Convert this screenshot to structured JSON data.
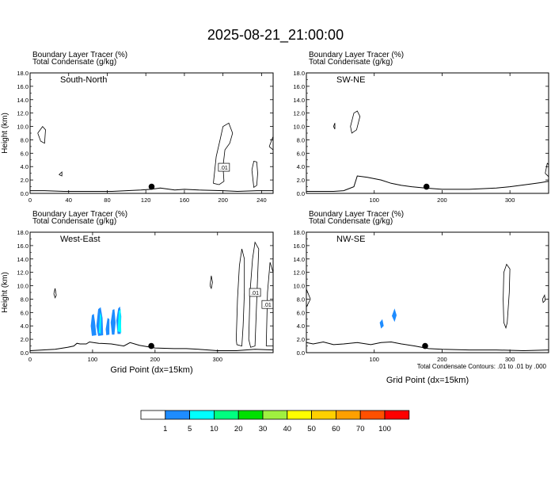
{
  "figure": {
    "title": "2025-08-21_21:00:00",
    "footer_note": "Total Condensate Contours: .01 to .01 by .000"
  },
  "colorbar": {
    "colors": [
      "#ffffff",
      "#1e8cff",
      "#00ffff",
      "#00ff80",
      "#00e000",
      "#a0f040",
      "#ffff00",
      "#ffd000",
      "#ffa000",
      "#ff5000",
      "#ff0000"
    ],
    "labels": [
      "1",
      "5",
      "10",
      "20",
      "30",
      "40",
      "50",
      "60",
      "70",
      "100"
    ]
  },
  "chart_data": [
    {
      "type": "contour",
      "header_line1": "Boundary Layer Tracer   (%)",
      "header_line2": "Total Condensate   (g/kg)",
      "panel_label": "South-North",
      "ylabel": "Height (km)",
      "xlabel": "",
      "xlim": [
        0,
        252
      ],
      "ylim": [
        0,
        18
      ],
      "xticks": [
        0,
        40,
        80,
        120,
        160,
        200,
        240
      ],
      "yticks": [
        "0.0",
        "2.0",
        "4.0",
        "6.0",
        "8.0",
        "10.0",
        "12.0",
        "14.0",
        "16.0",
        "18.0"
      ],
      "terrain": [
        [
          0,
          0.4
        ],
        [
          15,
          0.4
        ],
        [
          35,
          0.3
        ],
        [
          60,
          0.3
        ],
        [
          85,
          0.3
        ],
        [
          100,
          0.4
        ],
        [
          115,
          0.5
        ],
        [
          125,
          0.6
        ],
        [
          135,
          0.8
        ],
        [
          150,
          0.5
        ],
        [
          160,
          0.6
        ],
        [
          175,
          0.5
        ],
        [
          200,
          0.4
        ],
        [
          215,
          0.3
        ],
        [
          235,
          0.4
        ],
        [
          252,
          0.4
        ]
      ],
      "condensate_contour_label": ".01",
      "contours": [
        [
          [
            8,
            9.0
          ],
          [
            13,
            10.0
          ],
          [
            16,
            9.5
          ],
          [
            15,
            7.5
          ],
          [
            11,
            7.8
          ],
          [
            8,
            9.0
          ]
        ],
        [
          [
            30,
            2.8
          ],
          [
            33,
            3.2
          ],
          [
            33,
            2.6
          ],
          [
            30,
            2.8
          ]
        ],
        [
          [
            190,
            1.5
          ],
          [
            193,
            5.5
          ],
          [
            197,
            8.0
          ],
          [
            200,
            10.0
          ],
          [
            206,
            10.5
          ],
          [
            210,
            9.0
          ],
          [
            207,
            7.5
          ],
          [
            202,
            6.5
          ],
          [
            200,
            4.0
          ],
          [
            201,
            1.8
          ],
          [
            196,
            1.3
          ],
          [
            190,
            1.5
          ]
        ],
        [
          [
            230,
            3.5
          ],
          [
            232,
            4.8
          ],
          [
            235,
            4.7
          ],
          [
            236,
            3.0
          ],
          [
            235,
            1.2
          ],
          [
            232,
            0.9
          ],
          [
            230,
            3.5
          ]
        ],
        [
          [
            248,
            7.0
          ],
          [
            252,
            8.5
          ],
          [
            252,
            6.5
          ],
          [
            248,
            7.0
          ]
        ]
      ],
      "marker": {
        "x": 126,
        "y": 1.0
      },
      "boxed_label": {
        "x": 201,
        "y": 3.9,
        "text": ".01"
      }
    },
    {
      "type": "contour",
      "header_line1": "Boundary Layer Tracer   (%)",
      "header_line2": "Total Condensate   (g/kg)",
      "panel_label": "SW-NE",
      "ylabel": "",
      "xlabel": "",
      "xlim": [
        0,
        357
      ],
      "ylim": [
        0,
        18
      ],
      "xticks": [
        100,
        200,
        300
      ],
      "yticks": [
        "0.0",
        "2.0",
        "4.0",
        "6.0",
        "8.0",
        "10.0",
        "12.0",
        "14.0",
        "16.0",
        "18.0"
      ],
      "terrain": [
        [
          0,
          0.3
        ],
        [
          40,
          0.3
        ],
        [
          55,
          0.4
        ],
        [
          70,
          1.0
        ],
        [
          75,
          2.6
        ],
        [
          90,
          2.4
        ],
        [
          110,
          2.0
        ],
        [
          125,
          1.5
        ],
        [
          140,
          1.2
        ],
        [
          155,
          1.0
        ],
        [
          175,
          0.8
        ],
        [
          200,
          0.6
        ],
        [
          240,
          0.6
        ],
        [
          280,
          0.8
        ],
        [
          300,
          1.0
        ],
        [
          330,
          1.4
        ],
        [
          345,
          1.6
        ],
        [
          357,
          1.8
        ]
      ],
      "contours": [
        [
          [
            65,
            10.0
          ],
          [
            70,
            12.0
          ],
          [
            75,
            12.3
          ],
          [
            79,
            11.5
          ],
          [
            74,
            9.5
          ],
          [
            67,
            9.0
          ],
          [
            65,
            10.0
          ]
        ],
        [
          [
            40,
            10.0
          ],
          [
            42,
            10.5
          ],
          [
            42,
            9.6
          ],
          [
            40,
            10.0
          ]
        ],
        [
          [
            352,
            3.0
          ],
          [
            355,
            4.5
          ],
          [
            357,
            4.3
          ],
          [
            357,
            2.5
          ],
          [
            352,
            3.0
          ]
        ]
      ],
      "marker": {
        "x": 177,
        "y": 1.0
      }
    },
    {
      "type": "contour",
      "header_line1": "Boundary Layer Tracer   (%)",
      "header_line2": "Total Condensate   (g/kg)",
      "panel_label": "West-East",
      "ylabel": "Height (km)",
      "xlabel": "Grid Point (dx=15km)",
      "xlim": [
        0,
        389
      ],
      "ylim": [
        0,
        18
      ],
      "xticks": [
        0,
        100,
        200,
        300
      ],
      "yticks": [
        "0.0",
        "2.0",
        "4.0",
        "6.0",
        "8.0",
        "10.0",
        "12.0",
        "14.0",
        "16.0",
        "18.0"
      ],
      "terrain": [
        [
          0,
          0.3
        ],
        [
          40,
          0.5
        ],
        [
          60,
          0.8
        ],
        [
          70,
          1.0
        ],
        [
          75,
          1.4
        ],
        [
          80,
          1.3
        ],
        [
          90,
          1.3
        ],
        [
          95,
          1.6
        ],
        [
          110,
          1.4
        ],
        [
          130,
          1.3
        ],
        [
          150,
          1.0
        ],
        [
          160,
          1.5
        ],
        [
          175,
          1.1
        ],
        [
          200,
          0.7
        ],
        [
          230,
          0.6
        ],
        [
          250,
          0.6
        ],
        [
          270,
          0.5
        ],
        [
          300,
          0.3
        ],
        [
          330,
          0.3
        ],
        [
          360,
          0.5
        ],
        [
          389,
          0.4
        ]
      ],
      "fills": [
        [
          [
            97,
            4.0
          ],
          [
            99,
            5.6
          ],
          [
            102,
            5.8
          ],
          [
            104,
            4.5
          ],
          [
            106,
            2.6
          ],
          [
            99,
            2.5
          ],
          [
            97,
            4.0
          ]
        ],
        [
          [
            106,
            4.0
          ],
          [
            109,
            6.5
          ],
          [
            113,
            6.8
          ],
          [
            116,
            5.2
          ],
          [
            117,
            2.6
          ],
          [
            109,
            2.5
          ],
          [
            106,
            4.0
          ]
        ],
        [
          [
            121,
            3.5
          ],
          [
            124,
            5.2
          ],
          [
            127,
            5.0
          ],
          [
            127,
            2.7
          ],
          [
            122,
            2.6
          ],
          [
            121,
            3.5
          ]
        ],
        [
          [
            129,
            4.5
          ],
          [
            132,
            6.4
          ],
          [
            135,
            6.5
          ],
          [
            137,
            4.5
          ],
          [
            135,
            2.7
          ],
          [
            131,
            2.7
          ],
          [
            129,
            4.5
          ]
        ],
        [
          [
            138,
            4.8
          ],
          [
            141,
            6.6
          ],
          [
            144,
            6.9
          ],
          [
            146,
            5.4
          ],
          [
            145,
            2.8
          ],
          [
            140,
            2.8
          ],
          [
            138,
            4.8
          ]
        ]
      ],
      "cyan_fills": [
        [
          [
            110,
            3.0
          ],
          [
            112,
            6.0
          ],
          [
            114,
            5.5
          ],
          [
            113,
            2.8
          ],
          [
            110,
            3.0
          ]
        ],
        [
          [
            140,
            3.2
          ],
          [
            142,
            6.2
          ],
          [
            145,
            6.5
          ],
          [
            146,
            3.0
          ],
          [
            140,
            3.2
          ]
        ]
      ],
      "contours": [
        [
          [
            38,
            8.8
          ],
          [
            40,
            9.6
          ],
          [
            42,
            8.6
          ],
          [
            40,
            8.2
          ],
          [
            38,
            8.8
          ]
        ],
        [
          [
            330,
            2.0
          ],
          [
            332,
            8.0
          ],
          [
            335,
            13.0
          ],
          [
            339,
            15.5
          ],
          [
            343,
            14.0
          ],
          [
            343,
            9.0
          ],
          [
            341,
            4.0
          ],
          [
            339,
            1.0
          ],
          [
            331,
            1.2
          ],
          [
            330,
            2.0
          ]
        ],
        [
          [
            350,
            2.0
          ],
          [
            352,
            9.0
          ],
          [
            356,
            14.0
          ],
          [
            360,
            16.5
          ],
          [
            366,
            15.5
          ],
          [
            364,
            11.0
          ],
          [
            362,
            6.0
          ],
          [
            360,
            1.0
          ],
          [
            353,
            0.8
          ],
          [
            350,
            2.0
          ]
        ],
        [
          [
            378,
            1.0
          ],
          [
            380,
            9.0
          ],
          [
            384,
            13.5
          ],
          [
            389,
            12.0
          ],
          [
            389,
            1.0
          ],
          [
            378,
            1.0
          ]
        ],
        [
          [
            288,
            10.0
          ],
          [
            290,
            11.5
          ],
          [
            292,
            10.5
          ],
          [
            290,
            9.6
          ],
          [
            288,
            10.0
          ]
        ]
      ],
      "marker": {
        "x": 194,
        "y": 1.0
      },
      "boxed_label": {
        "x": 360,
        "y": 9.0,
        "text": ".01"
      },
      "boxed_label_2": {
        "x": 380,
        "y": 7.2,
        "text": ".01"
      }
    },
    {
      "type": "contour",
      "header_line1": "Boundary Layer Tracer   (%)",
      "header_line2": "Total Condensate   (g/kg)",
      "panel_label": "NW-SE",
      "ylabel": "",
      "xlabel": "Grid Point (dx=15km)",
      "xlim": [
        0,
        357
      ],
      "ylim": [
        0,
        18
      ],
      "xticks": [
        100,
        200,
        300
      ],
      "yticks": [
        "0.0",
        "2.0",
        "4.0",
        "6.0",
        "8.0",
        "10.0",
        "12.0",
        "14.0",
        "16.0",
        "18.0"
      ],
      "terrain": [
        [
          0,
          1.5
        ],
        [
          10,
          1.3
        ],
        [
          25,
          1.6
        ],
        [
          40,
          1.2
        ],
        [
          55,
          1.3
        ],
        [
          75,
          1.5
        ],
        [
          95,
          1.2
        ],
        [
          110,
          1.5
        ],
        [
          125,
          1.6
        ],
        [
          140,
          1.3
        ],
        [
          160,
          1.0
        ],
        [
          180,
          0.6
        ],
        [
          200,
          0.5
        ],
        [
          240,
          0.4
        ],
        [
          280,
          0.4
        ],
        [
          320,
          0.3
        ],
        [
          357,
          0.4
        ]
      ],
      "fills": [
        [
          [
            108,
            4.5
          ],
          [
            112,
            5.0
          ],
          [
            114,
            4.0
          ],
          [
            110,
            3.6
          ],
          [
            108,
            4.5
          ]
        ],
        [
          [
            126,
            5.5
          ],
          [
            130,
            6.6
          ],
          [
            133,
            5.6
          ],
          [
            130,
            4.6
          ],
          [
            126,
            5.5
          ]
        ]
      ],
      "contours": [
        [
          [
            0,
            6.8
          ],
          [
            6,
            8.0
          ],
          [
            0,
            9.5
          ]
        ],
        [
          [
            290,
            8.0
          ],
          [
            291,
            12.0
          ],
          [
            295,
            13.2
          ],
          [
            300,
            12.5
          ],
          [
            299,
            9.0
          ],
          [
            296,
            4.5
          ],
          [
            294,
            3.7
          ],
          [
            291,
            4.5
          ],
          [
            290,
            8.0
          ]
        ],
        [
          [
            348,
            8.0
          ],
          [
            351,
            8.6
          ],
          [
            352,
            7.8
          ],
          [
            349,
            7.5
          ],
          [
            348,
            8.0
          ]
        ]
      ],
      "marker": {
        "x": 175,
        "y": 1.0
      }
    }
  ]
}
